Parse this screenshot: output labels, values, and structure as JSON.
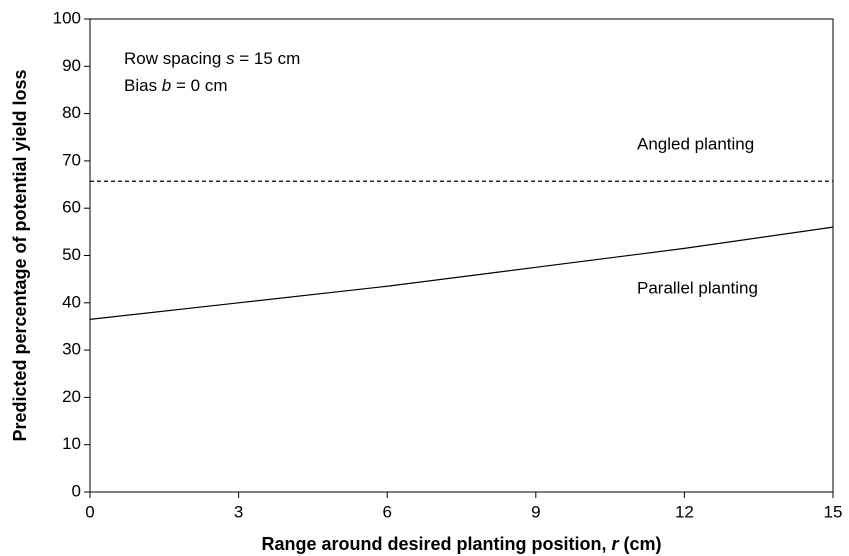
{
  "chart_data": {
    "type": "line",
    "ylabel": [
      "Predicted percentage of potential yield loss"
    ],
    "xlabel": [
      "Range around desired planting position, ",
      "r",
      " (cm)"
    ],
    "annotations": [
      [
        "Row spacing ",
        "s",
        " = 15 cm"
      ],
      [
        "Bias ",
        "b",
        " = 0 cm"
      ]
    ],
    "x": [
      0,
      3,
      6,
      9,
      12,
      15
    ],
    "series": [
      {
        "name": "Angled planting",
        "color": "#000000",
        "style": "dashed",
        "values": [
          65.7,
          65.7,
          65.7,
          65.7,
          65.7,
          65.7
        ]
      },
      {
        "name": "Parallel planting",
        "color": "#000000",
        "style": "solid",
        "values": [
          36.5,
          40,
          43.5,
          47.5,
          51.5,
          56
        ]
      }
    ],
    "xlim": [
      0,
      15
    ],
    "xticks": [
      0,
      3,
      6,
      9,
      12,
      15
    ],
    "ylim": [
      0,
      100
    ],
    "yticks": [
      0,
      10,
      20,
      30,
      40,
      50,
      60,
      70,
      80,
      90,
      100
    ],
    "grid": false
  }
}
